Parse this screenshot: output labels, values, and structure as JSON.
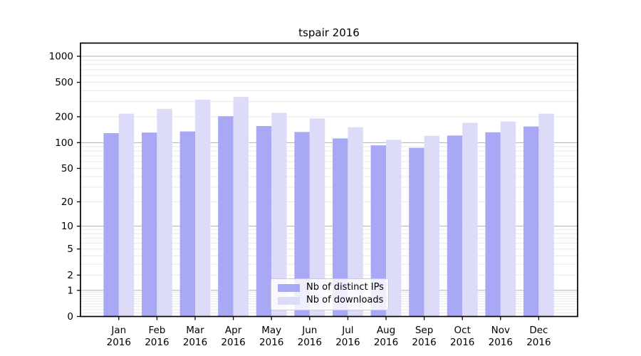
{
  "chart_data": {
    "type": "bar",
    "title": "tspair 2016",
    "categories": [
      "Jan 2016",
      "Feb 2016",
      "Mar 2016",
      "Apr 2016",
      "May 2016",
      "Jun 2016",
      "Jul 2016",
      "Aug 2016",
      "Sep 2016",
      "Oct 2016",
      "Nov 2016",
      "Dec 2016"
    ],
    "series": [
      {
        "name": "Nb of distinct IPs",
        "color": "#a8a8f5",
        "values": [
          129,
          131,
          135,
          203,
          156,
          133,
          112,
          93,
          87,
          121,
          132,
          154
        ]
      },
      {
        "name": "Nb of downloads",
        "color": "#dcdcf9",
        "values": [
          217,
          247,
          316,
          339,
          222,
          191,
          151,
          108,
          120,
          170,
          176,
          217
        ]
      }
    ],
    "y_axis": {
      "scale": "log10(1+x)",
      "tick_labels": [
        "1000",
        "500",
        "200",
        "100",
        "50",
        "20",
        "10",
        "5",
        "2",
        "1",
        "0"
      ],
      "tick_values": [
        1000,
        500,
        200,
        100,
        50,
        20,
        10,
        5,
        2,
        1,
        0
      ],
      "top_value": 1400
    },
    "grid": {
      "major_color": "#b0b0b0",
      "minor_color": "#e9e9e9",
      "visible": true
    },
    "legend": {
      "position": "bottom-center",
      "border_color": "#cccccc"
    },
    "axis_color": "#000000",
    "text_color": "#000000",
    "background": "#ffffff"
  }
}
